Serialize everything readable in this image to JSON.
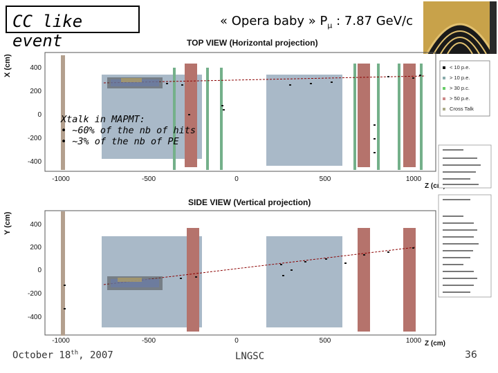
{
  "title": "CC like event",
  "header": {
    "prefix": "« Opera baby » P",
    "subscript": "μ",
    "suffix": " : 7.87 GeV/c"
  },
  "note": {
    "heading": "Xtalk in MAPMT:",
    "line1": "• ~60% of the nb of hits",
    "line2": "• ~3% of the nb of PE"
  },
  "top_plot": {
    "title": "TOP VIEW (Horizontal projection)",
    "ylabel": "X (cm)",
    "xlabel": "Z (cm)",
    "yticks": [
      "400",
      "200",
      "0",
      "-200",
      "-400"
    ],
    "xticks": [
      "-1000",
      "-500",
      "0",
      "500",
      "1000"
    ],
    "legend": [
      "< 10 p.e.",
      "> 10 p.e.",
      "> 30 p.c.",
      "> 50 p.e.",
      "Cross Talk"
    ]
  },
  "bottom_plot": {
    "title": "SIDE VIEW (Vertical projection)",
    "ylabel": "Y (cm)",
    "xlabel": "Z (cm)",
    "yticks": [
      "400",
      "200",
      "0",
      "-200",
      "-400"
    ],
    "xticks": [
      "-1000",
      "-500",
      "0",
      "500",
      "1000"
    ]
  },
  "footer": {
    "date_prefix": "October 18",
    "date_sup": "th",
    "date_suffix": ", 2007",
    "venue": "LNGSC",
    "page": "36"
  },
  "colors": {
    "gray_box": "#a9b9c8",
    "red_band": "#b5736c",
    "green_band": "#74b08a",
    "tan_band": "#b3a08e",
    "track": "#8b0000"
  }
}
